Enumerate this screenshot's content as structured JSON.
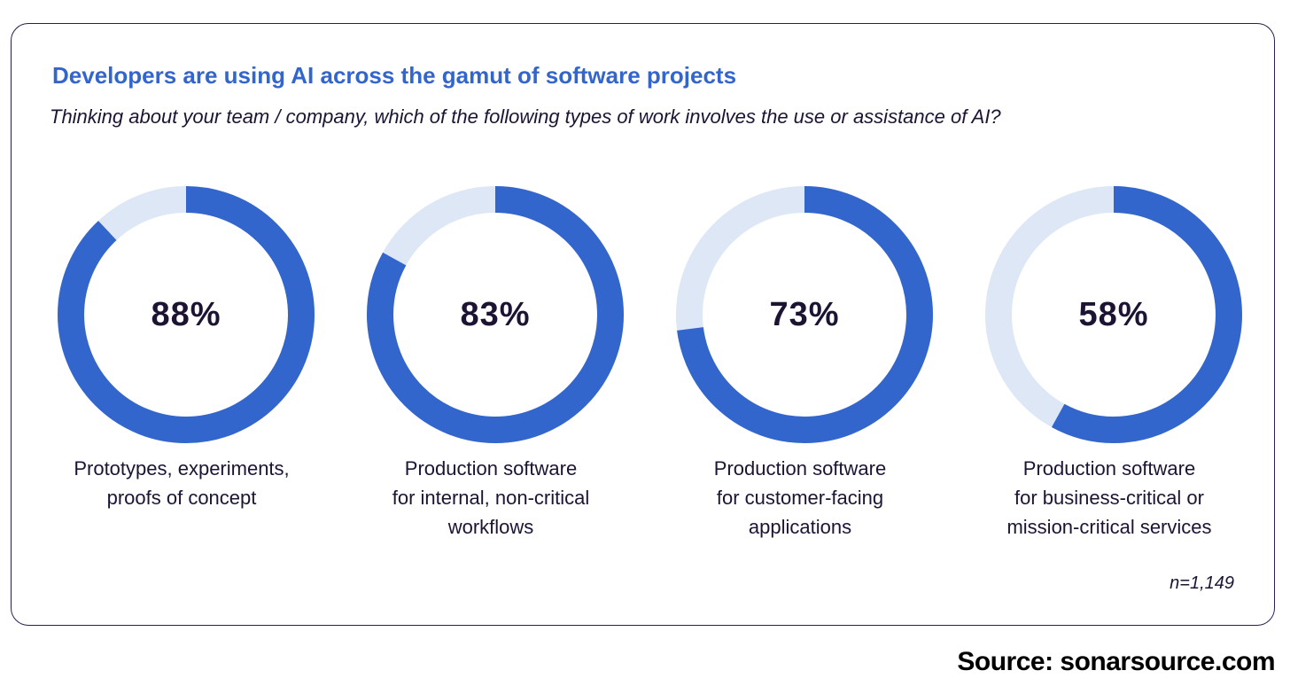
{
  "title": "Developers are using AI across the gamut of software projects",
  "subtitle": "Thinking about your team / company, which of the following types of work involves the use or assistance of AI?",
  "colors": {
    "accent": "#3366cc",
    "track": "#dde7f6",
    "text": "#1d1433",
    "border": "#2a1f4f"
  },
  "chart_data": {
    "type": "pie",
    "variant": "donut",
    "title": "Developers are using AI across the gamut of software projects",
    "subtitle": "Thinking about your team / company, which of the following types of work involves the use or assistance of AI?",
    "unit": "%",
    "items": [
      {
        "value_label": "88%",
        "value": 88,
        "label_lines": [
          "Prototypes, experiments,",
          "proofs of concept"
        ]
      },
      {
        "value_label": "83%",
        "value": 83,
        "label_lines": [
          "Production software",
          "for internal, non-critical",
          "workflows"
        ]
      },
      {
        "value_label": "73%",
        "value": 73,
        "label_lines": [
          "Production software",
          "for customer-facing",
          "applications"
        ]
      },
      {
        "value_label": "58%",
        "value": 58,
        "label_lines": [
          "Production software",
          "for business-critical or",
          "mission-critical services"
        ]
      }
    ],
    "note": "n=1,149"
  },
  "source": "Source: sonarsource.com"
}
